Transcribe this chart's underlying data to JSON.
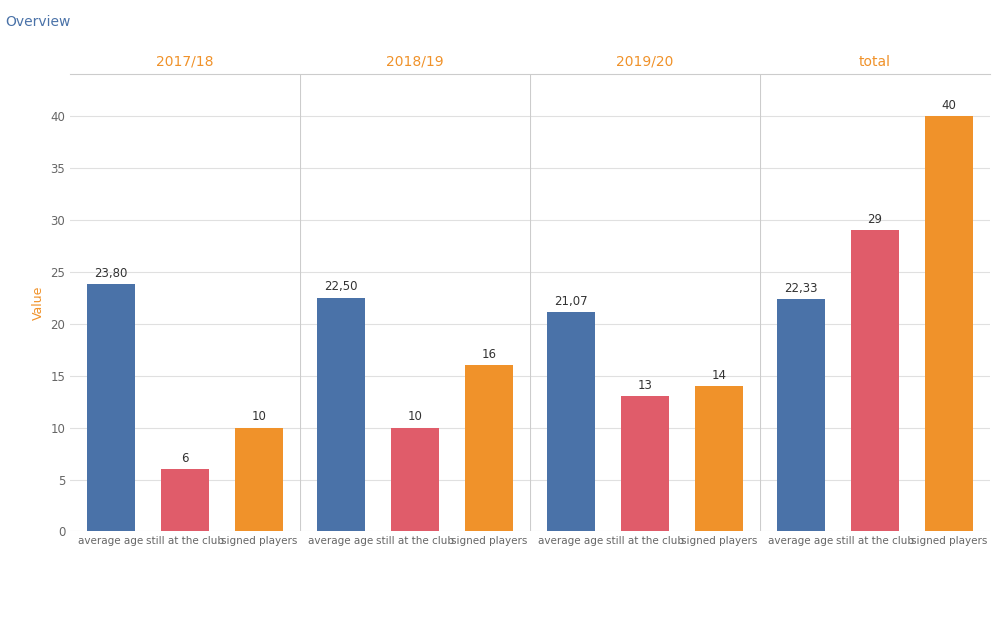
{
  "groups": [
    "2017/18",
    "2018/19",
    "2019/20",
    "total"
  ],
  "categories": [
    "average age",
    "still at the club",
    "signed players"
  ],
  "values": [
    [
      23.8,
      6,
      10
    ],
    [
      22.5,
      10,
      16
    ],
    [
      21.07,
      13,
      14
    ],
    [
      22.33,
      29,
      40
    ]
  ],
  "bar_colors": [
    "#4a72a8",
    "#e05c6a",
    "#f0922a"
  ],
  "group_title_color": "#f0922a",
  "overview_text": "Overview",
  "overview_color": "#4a72a8",
  "ylabel": "Value",
  "ylabel_color": "#f0922a",
  "ylim": [
    0,
    44
  ],
  "yticks": [
    0,
    5,
    10,
    15,
    20,
    25,
    30,
    35,
    40
  ],
  "background_color": "#ffffff",
  "plot_bg_color": "#ffffff",
  "grid_color": "#e0e0e0",
  "tick_color": "#666666",
  "separator_color": "#cccccc",
  "label_fontsize": 7.5,
  "value_fontsize": 8.5,
  "group_title_fontsize": 10,
  "overview_fontsize": 10,
  "ylabel_fontsize": 9
}
